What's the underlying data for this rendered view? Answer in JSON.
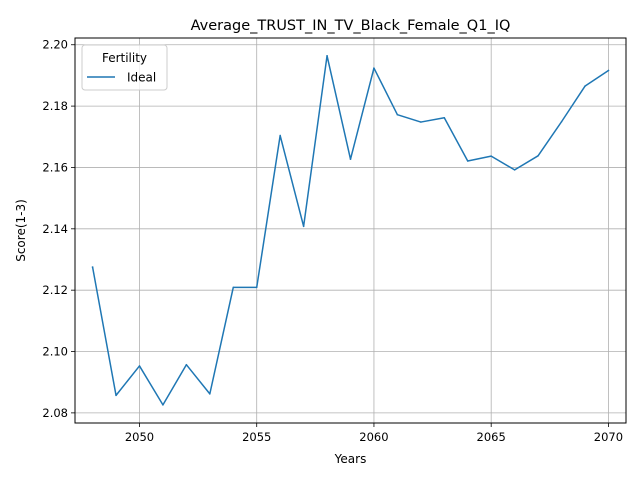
{
  "chart_data": {
    "type": "line",
    "title": "Average_TRUST_IN_TV_Black_Female_Q1_IQ",
    "xlabel": "Years",
    "ylabel": "Score(1-3)",
    "xlim": [
      2047.25,
      2070.75
    ],
    "ylim": [
      2.0767,
      2.2022
    ],
    "xticks": [
      2050,
      2055,
      2060,
      2065,
      2070
    ],
    "yticks": [
      2.08,
      2.1,
      2.12,
      2.14,
      2.16,
      2.18,
      2.2
    ],
    "grid": true,
    "legend": {
      "title": "Fertility",
      "placement": "upper left"
    },
    "series": [
      {
        "name": "Ideal",
        "color": "#1f77b4",
        "x": [
          2048,
          2049,
          2050,
          2051,
          2052,
          2053,
          2054,
          2055,
          2056,
          2057,
          2058,
          2059,
          2060,
          2061,
          2062,
          2063,
          2064,
          2065,
          2066,
          2067,
          2068,
          2069,
          2070
        ],
        "y": [
          2.1275,
          2.0857,
          2.0953,
          2.0826,
          2.0957,
          2.0862,
          2.1209,
          2.1209,
          2.1704,
          2.1408,
          2.1964,
          2.1627,
          2.1924,
          2.1772,
          2.1748,
          2.1762,
          2.1621,
          2.1637,
          2.1592,
          2.1638,
          2.1749,
          2.1865,
          2.1916
        ]
      }
    ]
  }
}
